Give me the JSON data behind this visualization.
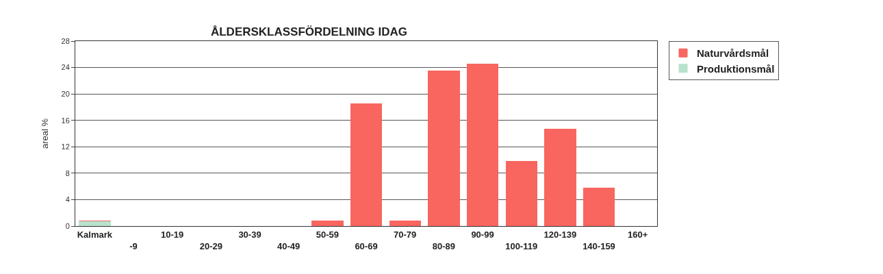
{
  "chart_data": {
    "type": "bar",
    "title": "ÅLDERSKLASSFÖRDELNING IDAG",
    "ylabel": "areal %",
    "categories": [
      "Kalmark",
      "-9",
      "10-19",
      "20-29",
      "30-39",
      "40-49",
      "50-59",
      "60-69",
      "70-79",
      "80-89",
      "90-99",
      "100-119",
      "120-139",
      "140-159",
      "160+"
    ],
    "series": [
      {
        "name": "Produktionsmål",
        "color": "#b8e2cc",
        "values": [
          0.8,
          null,
          null,
          null,
          null,
          null,
          null,
          null,
          null,
          null,
          null,
          null,
          null,
          null,
          null
        ]
      },
      {
        "name": "Naturvårdsmål",
        "color": "#f8665f",
        "values": [
          0,
          0,
          0,
          0,
          0,
          0,
          0.8,
          18.5,
          0.8,
          23.5,
          24.5,
          9.8,
          14.7,
          5.8,
          0
        ]
      }
    ],
    "stacked": true,
    "ylim": [
      0,
      28
    ],
    "yticks": [
      0,
      4,
      8,
      12,
      16,
      20,
      24,
      28
    ],
    "grid": "y",
    "legend": "top right"
  }
}
